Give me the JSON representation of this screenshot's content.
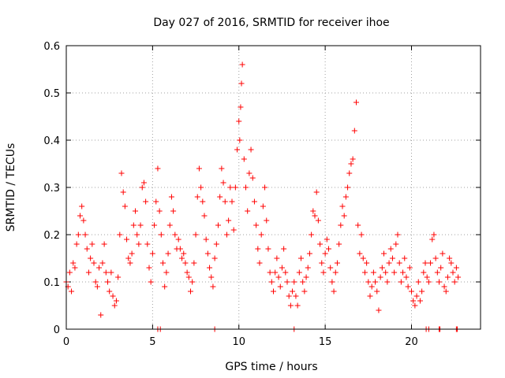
{
  "chart_data": {
    "type": "scatter",
    "title": "Day 027 of 2016, SRMTID for receiver ihoe",
    "xlabel": "GPS time / hours",
    "ylabel": "SRMTID / TECUs",
    "xlim": [
      0,
      24
    ],
    "ylim": [
      0,
      0.6
    ],
    "xticks": [
      0,
      5,
      10,
      15,
      20
    ],
    "yticks": [
      0,
      0.1,
      0.2,
      0.3,
      0.4,
      0.5,
      0.6
    ],
    "xtick_labels": [
      "0",
      "5",
      "10",
      "15",
      "20"
    ],
    "ytick_labels": [
      "0",
      "0.1",
      "0.2",
      "0.3",
      "0.4",
      "0.5",
      "0.6"
    ],
    "grid": true,
    "marker": "+",
    "series_color": "#ff0000",
    "series": [
      {
        "name": "SRMTID",
        "points": [
          [
            0.0,
            0.1
          ],
          [
            0.1,
            0.09
          ],
          [
            0.2,
            0.12
          ],
          [
            0.3,
            0.08
          ],
          [
            0.4,
            0.14
          ],
          [
            0.5,
            0.13
          ],
          [
            0.6,
            0.18
          ],
          [
            0.7,
            0.2
          ],
          [
            0.8,
            0.24
          ],
          [
            0.9,
            0.26
          ],
          [
            1.0,
            0.23
          ],
          [
            1.1,
            0.2
          ],
          [
            1.2,
            0.17
          ],
          [
            1.3,
            0.12
          ],
          [
            1.4,
            0.15
          ],
          [
            1.5,
            0.18
          ],
          [
            1.6,
            0.14
          ],
          [
            1.7,
            0.1
          ],
          [
            1.8,
            0.09
          ],
          [
            1.9,
            0.13
          ],
          [
            2.0,
            0.03
          ],
          [
            2.1,
            0.14
          ],
          [
            2.2,
            0.18
          ],
          [
            2.3,
            0.12
          ],
          [
            2.4,
            0.1
          ],
          [
            2.5,
            0.08
          ],
          [
            2.6,
            0.12
          ],
          [
            2.7,
            0.07
          ],
          [
            2.8,
            0.05
          ],
          [
            2.9,
            0.06
          ],
          [
            3.0,
            0.11
          ],
          [
            3.1,
            0.2
          ],
          [
            3.2,
            0.33
          ],
          [
            3.3,
            0.29
          ],
          [
            3.4,
            0.26
          ],
          [
            3.5,
            0.19
          ],
          [
            3.6,
            0.15
          ],
          [
            3.7,
            0.14
          ],
          [
            3.8,
            0.16
          ],
          [
            3.9,
            0.22
          ],
          [
            4.0,
            0.25
          ],
          [
            4.1,
            0.2
          ],
          [
            4.2,
            0.18
          ],
          [
            4.3,
            0.22
          ],
          [
            4.4,
            0.3
          ],
          [
            4.5,
            0.31
          ],
          [
            4.6,
            0.27
          ],
          [
            4.7,
            0.18
          ],
          [
            4.8,
            0.13
          ],
          [
            4.9,
            0.1
          ],
          [
            5.0,
            0.16
          ],
          [
            5.1,
            0.22
          ],
          [
            5.2,
            0.27
          ],
          [
            5.3,
            0.34
          ],
          [
            5.4,
            0.25
          ],
          [
            5.5,
            0.2
          ],
          [
            5.6,
            0.14
          ],
          [
            5.7,
            0.09
          ],
          [
            5.8,
            0.12
          ],
          [
            5.9,
            0.16
          ],
          [
            6.0,
            0.22
          ],
          [
            6.1,
            0.28
          ],
          [
            6.2,
            0.25
          ],
          [
            6.3,
            0.2
          ],
          [
            6.4,
            0.17
          ],
          [
            6.5,
            0.19
          ],
          [
            6.6,
            0.17
          ],
          [
            6.7,
            0.15
          ],
          [
            6.8,
            0.16
          ],
          [
            6.9,
            0.14
          ],
          [
            7.0,
            0.12
          ],
          [
            7.1,
            0.11
          ],
          [
            7.2,
            0.08
          ],
          [
            7.3,
            0.1
          ],
          [
            7.4,
            0.14
          ],
          [
            7.5,
            0.2
          ],
          [
            7.6,
            0.28
          ],
          [
            7.7,
            0.34
          ],
          [
            7.8,
            0.3
          ],
          [
            7.9,
            0.27
          ],
          [
            8.0,
            0.24
          ],
          [
            8.1,
            0.19
          ],
          [
            8.2,
            0.16
          ],
          [
            8.3,
            0.13
          ],
          [
            8.4,
            0.11
          ],
          [
            8.5,
            0.09
          ],
          [
            8.6,
            0.15
          ],
          [
            8.7,
            0.18
          ],
          [
            8.8,
            0.22
          ],
          [
            8.9,
            0.28
          ],
          [
            9.0,
            0.34
          ],
          [
            9.1,
            0.31
          ],
          [
            9.2,
            0.27
          ],
          [
            9.3,
            0.2
          ],
          [
            9.4,
            0.23
          ],
          [
            9.5,
            0.3
          ],
          [
            9.6,
            0.27
          ],
          [
            9.7,
            0.21
          ],
          [
            9.8,
            0.3
          ],
          [
            9.9,
            0.38
          ],
          [
            10.0,
            0.44
          ],
          [
            10.05,
            0.4
          ],
          [
            10.1,
            0.47
          ],
          [
            10.15,
            0.52
          ],
          [
            10.2,
            0.56
          ],
          [
            10.3,
            0.36
          ],
          [
            10.4,
            0.3
          ],
          [
            10.5,
            0.25
          ],
          [
            10.6,
            0.33
          ],
          [
            10.7,
            0.38
          ],
          [
            10.8,
            0.32
          ],
          [
            10.9,
            0.27
          ],
          [
            11.0,
            0.22
          ],
          [
            11.1,
            0.17
          ],
          [
            11.2,
            0.14
          ],
          [
            11.3,
            0.2
          ],
          [
            11.4,
            0.26
          ],
          [
            11.5,
            0.3
          ],
          [
            11.6,
            0.23
          ],
          [
            11.7,
            0.17
          ],
          [
            11.8,
            0.12
          ],
          [
            11.9,
            0.1
          ],
          [
            12.0,
            0.08
          ],
          [
            12.1,
            0.12
          ],
          [
            12.2,
            0.15
          ],
          [
            12.3,
            0.11
          ],
          [
            12.4,
            0.09
          ],
          [
            12.5,
            0.13
          ],
          [
            12.6,
            0.17
          ],
          [
            12.7,
            0.12
          ],
          [
            12.8,
            0.1
          ],
          [
            12.9,
            0.07
          ],
          [
            13.0,
            0.05
          ],
          [
            13.1,
            0.08
          ],
          [
            13.2,
            0.1
          ],
          [
            13.3,
            0.07
          ],
          [
            13.4,
            0.05
          ],
          [
            13.5,
            0.12
          ],
          [
            13.6,
            0.15
          ],
          [
            13.7,
            0.1
          ],
          [
            13.8,
            0.08
          ],
          [
            13.9,
            0.11
          ],
          [
            14.0,
            0.13
          ],
          [
            14.1,
            0.16
          ],
          [
            14.2,
            0.2
          ],
          [
            14.3,
            0.25
          ],
          [
            14.4,
            0.24
          ],
          [
            14.5,
            0.29
          ],
          [
            14.6,
            0.23
          ],
          [
            14.7,
            0.18
          ],
          [
            14.8,
            0.14
          ],
          [
            14.9,
            0.12
          ],
          [
            15.0,
            0.16
          ],
          [
            15.1,
            0.19
          ],
          [
            15.2,
            0.17
          ],
          [
            15.3,
            0.13
          ],
          [
            15.4,
            0.1
          ],
          [
            15.5,
            0.08
          ],
          [
            15.6,
            0.12
          ],
          [
            15.7,
            0.14
          ],
          [
            15.8,
            0.18
          ],
          [
            15.9,
            0.22
          ],
          [
            16.0,
            0.26
          ],
          [
            16.1,
            0.24
          ],
          [
            16.2,
            0.28
          ],
          [
            16.3,
            0.3
          ],
          [
            16.4,
            0.33
          ],
          [
            16.5,
            0.35
          ],
          [
            16.6,
            0.36
          ],
          [
            16.7,
            0.42
          ],
          [
            16.8,
            0.48
          ],
          [
            16.9,
            0.22
          ],
          [
            17.0,
            0.16
          ],
          [
            17.1,
            0.2
          ],
          [
            17.2,
            0.15
          ],
          [
            17.3,
            0.12
          ],
          [
            17.4,
            0.14
          ],
          [
            17.5,
            0.1
          ],
          [
            17.6,
            0.07
          ],
          [
            17.7,
            0.09
          ],
          [
            17.8,
            0.12
          ],
          [
            17.9,
            0.1
          ],
          [
            18.0,
            0.08
          ],
          [
            18.1,
            0.04
          ],
          [
            18.2,
            0.11
          ],
          [
            18.3,
            0.13
          ],
          [
            18.4,
            0.16
          ],
          [
            18.5,
            0.12
          ],
          [
            18.6,
            0.1
          ],
          [
            18.7,
            0.14
          ],
          [
            18.8,
            0.17
          ],
          [
            18.9,
            0.15
          ],
          [
            19.0,
            0.12
          ],
          [
            19.1,
            0.18
          ],
          [
            19.2,
            0.2
          ],
          [
            19.3,
            0.14
          ],
          [
            19.4,
            0.1
          ],
          [
            19.5,
            0.12
          ],
          [
            19.6,
            0.15
          ],
          [
            19.7,
            0.11
          ],
          [
            19.8,
            0.09
          ],
          [
            19.9,
            0.13
          ],
          [
            20.0,
            0.08
          ],
          [
            20.1,
            0.06
          ],
          [
            20.2,
            0.05
          ],
          [
            20.3,
            0.07
          ],
          [
            20.4,
            0.1
          ],
          [
            20.5,
            0.06
          ],
          [
            20.6,
            0.08
          ],
          [
            20.7,
            0.12
          ],
          [
            20.8,
            0.14
          ],
          [
            20.9,
            0.11
          ],
          [
            21.0,
            0.1
          ],
          [
            21.1,
            0.14
          ],
          [
            21.2,
            0.19
          ],
          [
            21.3,
            0.2
          ],
          [
            21.4,
            0.15
          ],
          [
            21.5,
            0.12
          ],
          [
            21.6,
            0.1
          ],
          [
            21.7,
            0.13
          ],
          [
            21.8,
            0.16
          ],
          [
            21.9,
            0.09
          ],
          [
            22.0,
            0.08
          ],
          [
            22.1,
            0.11
          ],
          [
            22.2,
            0.15
          ],
          [
            22.3,
            0.14
          ],
          [
            22.4,
            0.12
          ],
          [
            22.5,
            0.1
          ],
          [
            22.6,
            0.13
          ],
          [
            22.7,
            0.11
          ],
          [
            5.3,
            0.0
          ],
          [
            5.45,
            0.0
          ],
          [
            8.6,
            0.0
          ],
          [
            13.2,
            0.0
          ],
          [
            21.6,
            0.0
          ],
          [
            21.65,
            0.0
          ],
          [
            22.6,
            0.0
          ],
          [
            22.65,
            0.0
          ],
          [
            20.85,
            0.0
          ],
          [
            21.0,
            0.0
          ]
        ]
      }
    ]
  }
}
